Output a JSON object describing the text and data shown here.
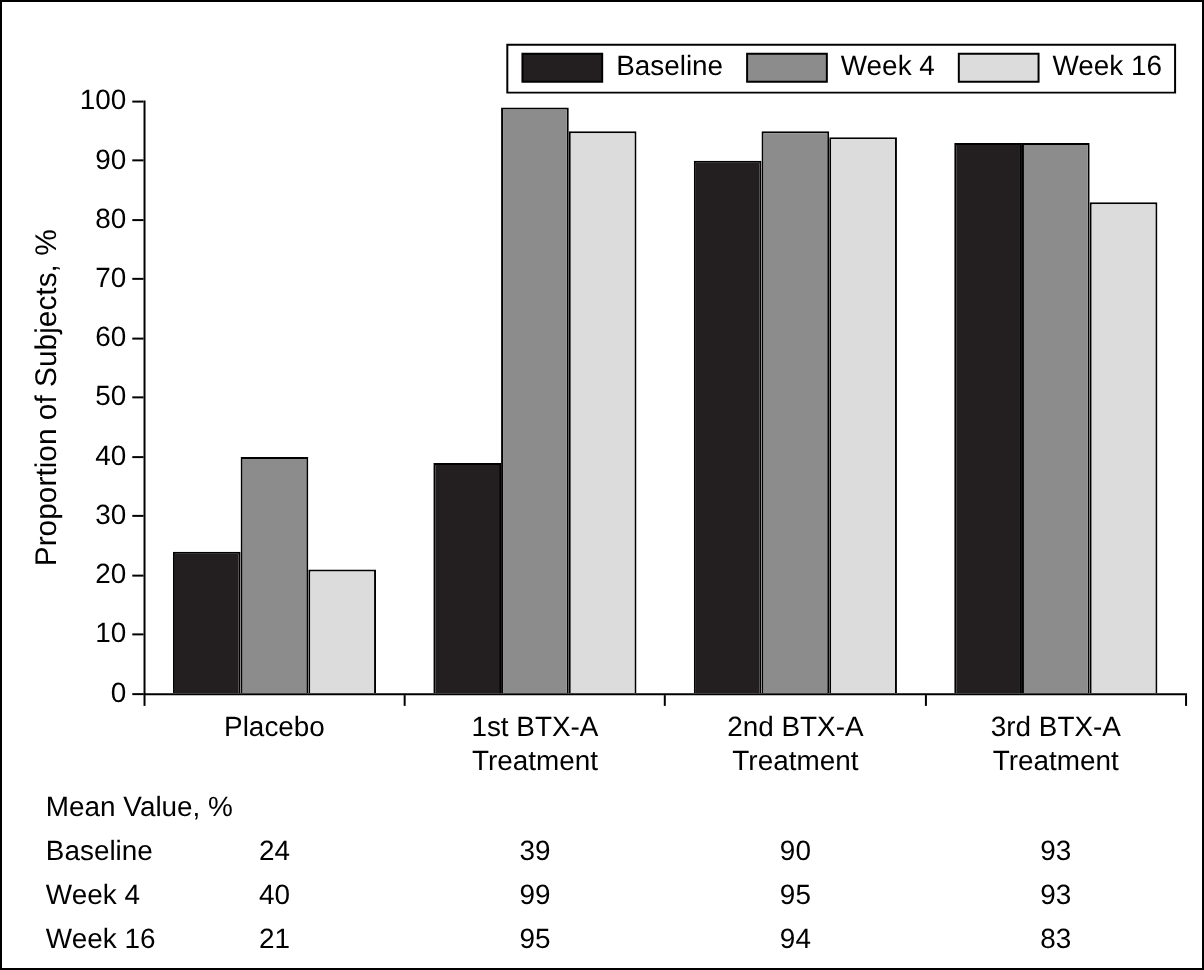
{
  "chart_data": {
    "type": "bar",
    "ylabel": "Proportion of Subjects, %",
    "categories": [
      "Placebo",
      "1st BTX-A Treatment",
      "2nd BTX-A Treatment",
      "3rd BTX-A Treatment"
    ],
    "series": [
      {
        "name": "Baseline",
        "color": "#231f20",
        "values": [
          24,
          39,
          90,
          93
        ]
      },
      {
        "name": "Week 4",
        "color": "#8c8c8c",
        "values": [
          40,
          99,
          95,
          93
        ]
      },
      {
        "name": "Week 16",
        "color": "#dcdcdc",
        "values": [
          21,
          95,
          94,
          83
        ]
      }
    ],
    "ylim": [
      0,
      100
    ],
    "yticks": [
      0,
      10,
      20,
      30,
      40,
      50,
      60,
      70,
      80,
      90,
      100
    ],
    "grid": false,
    "legend": "top right",
    "data_labels": true,
    "annotations": [
      "Mean Value, %"
    ]
  }
}
